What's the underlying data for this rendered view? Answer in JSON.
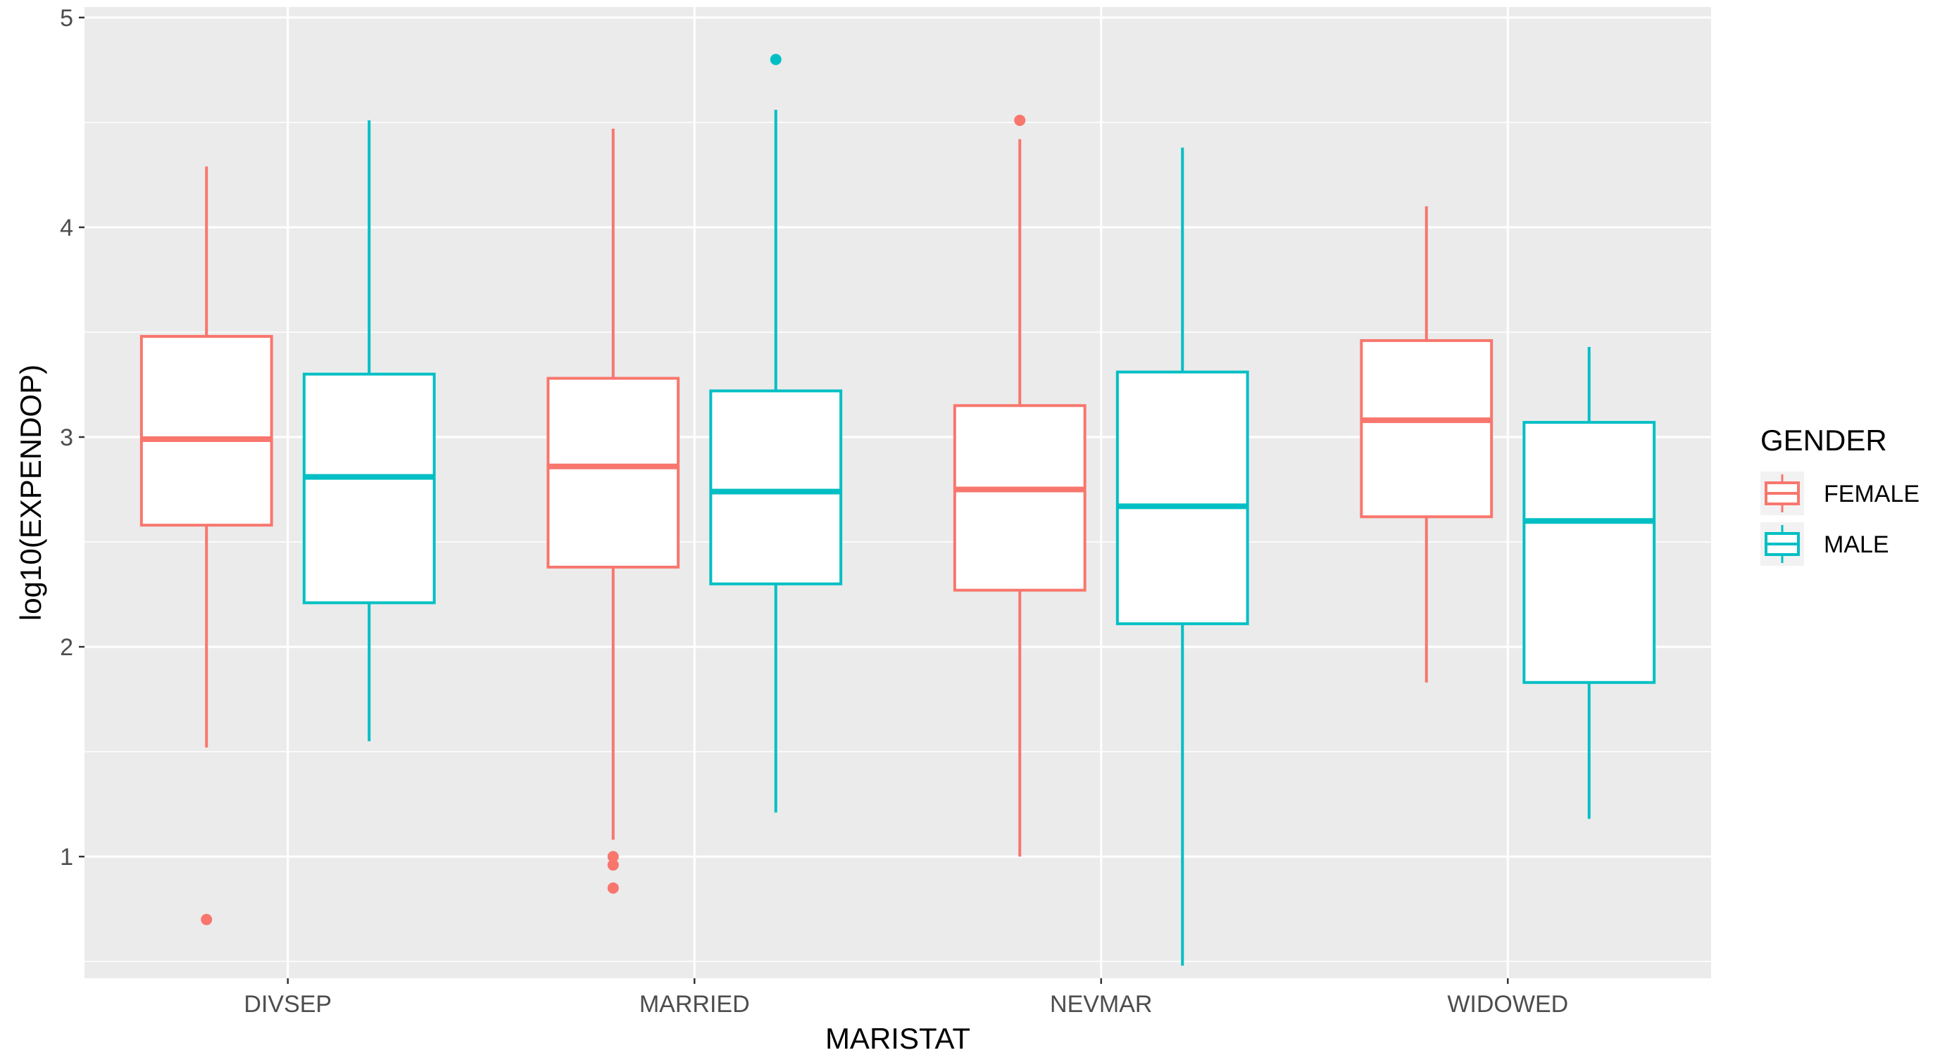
{
  "chart_data": {
    "type": "boxplot",
    "xlabel": "MARISTAT",
    "ylabel": "log10(EXPENDOP)",
    "categories": [
      "DIVSEP",
      "MARRIED",
      "NEVMAR",
      "WIDOWED"
    ],
    "ylim": [
      0.42,
      5.05
    ],
    "yticks": [
      1,
      2,
      3,
      4,
      5
    ],
    "grid": true,
    "legend": {
      "title": "GENDER",
      "position": "right",
      "entries": [
        {
          "name": "FEMALE",
          "color": "#F8766D"
        },
        {
          "name": "MALE",
          "color": "#00BFC4"
        }
      ]
    },
    "series": [
      {
        "name": "FEMALE",
        "color": "#F8766D",
        "boxes": [
          {
            "category": "DIVSEP",
            "lower_whisker": 1.52,
            "q1": 2.58,
            "median": 2.99,
            "q3": 3.48,
            "upper_whisker": 4.29,
            "outliers": [
              0.7
            ]
          },
          {
            "category": "MARRIED",
            "lower_whisker": 1.08,
            "q1": 2.38,
            "median": 2.86,
            "q3": 3.28,
            "upper_whisker": 4.47,
            "outliers": [
              1.0,
              0.96,
              0.85
            ]
          },
          {
            "category": "NEVMAR",
            "lower_whisker": 1.0,
            "q1": 2.27,
            "median": 2.75,
            "q3": 3.15,
            "upper_whisker": 4.42,
            "outliers": [
              4.51
            ]
          },
          {
            "category": "WIDOWED",
            "lower_whisker": 1.83,
            "q1": 2.62,
            "median": 3.08,
            "q3": 3.46,
            "upper_whisker": 4.1,
            "outliers": []
          }
        ]
      },
      {
        "name": "MALE",
        "color": "#00BFC4",
        "boxes": [
          {
            "category": "DIVSEP",
            "lower_whisker": 1.55,
            "q1": 2.21,
            "median": 2.81,
            "q3": 3.3,
            "upper_whisker": 4.51,
            "outliers": []
          },
          {
            "category": "MARRIED",
            "lower_whisker": 1.21,
            "q1": 2.3,
            "median": 2.74,
            "q3": 3.22,
            "upper_whisker": 4.56,
            "outliers": [
              4.8
            ]
          },
          {
            "category": "NEVMAR",
            "lower_whisker": 0.48,
            "q1": 2.11,
            "median": 2.67,
            "q3": 3.31,
            "upper_whisker": 4.38,
            "outliers": []
          },
          {
            "category": "WIDOWED",
            "lower_whisker": 1.18,
            "q1": 1.83,
            "median": 2.6,
            "q3": 3.07,
            "upper_whisker": 3.43,
            "outliers": []
          }
        ]
      }
    ]
  }
}
